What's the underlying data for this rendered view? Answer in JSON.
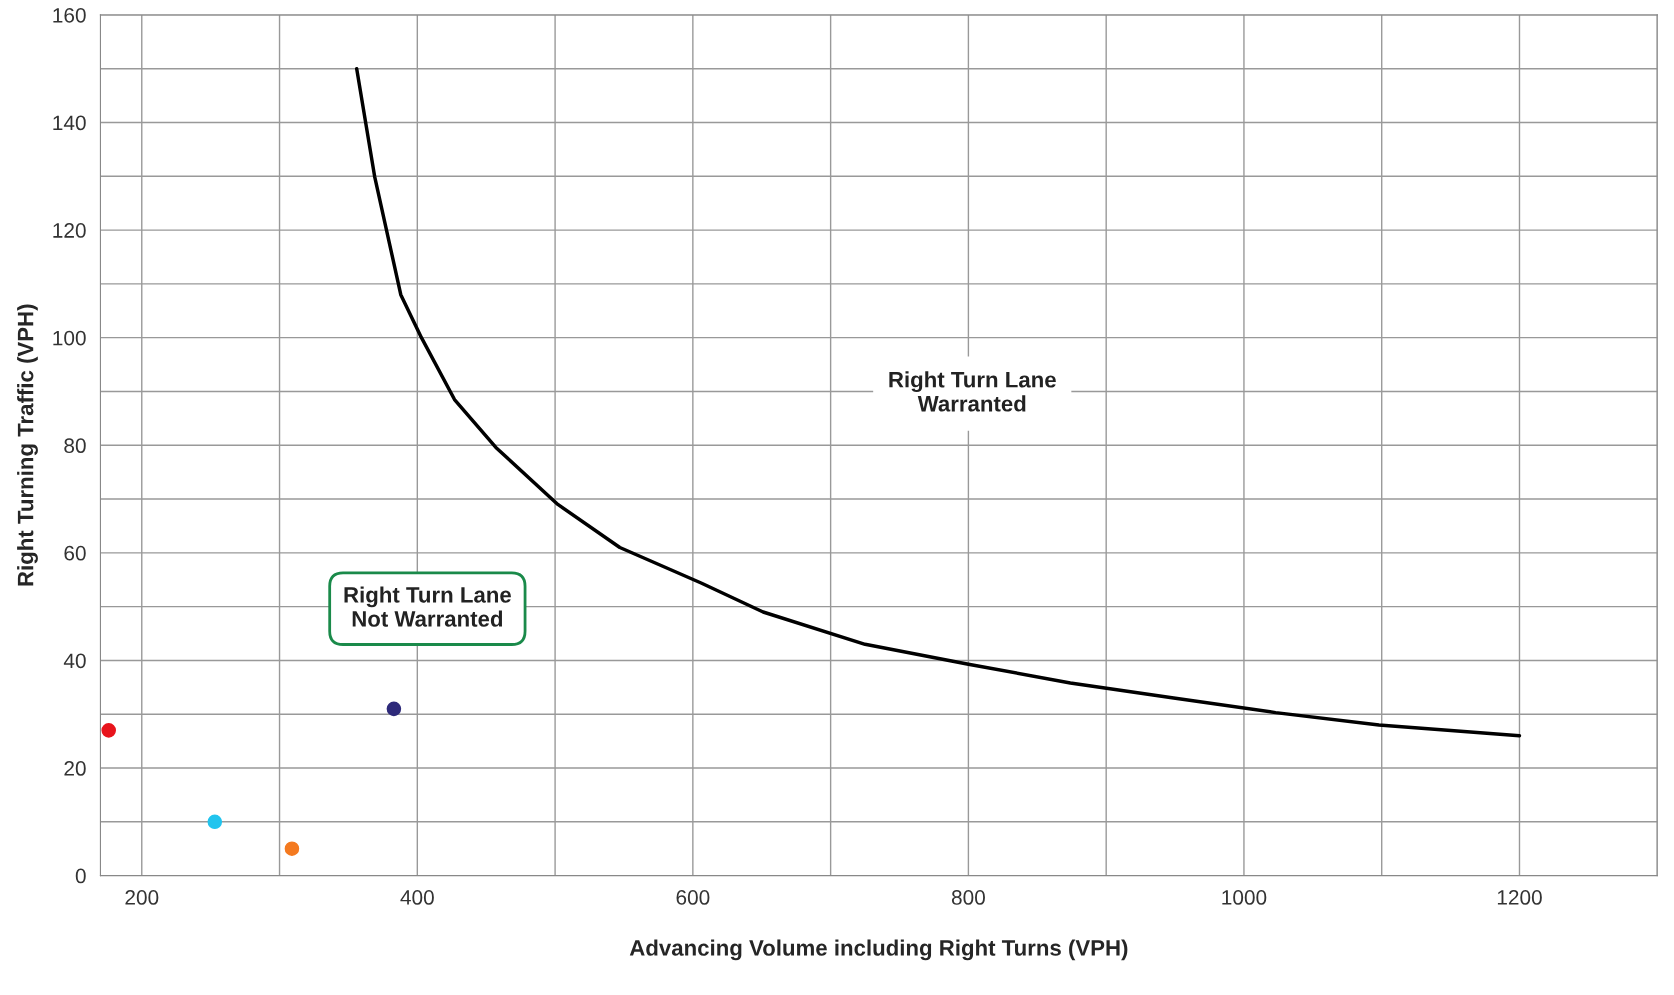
{
  "chart_data": {
    "type": "line",
    "xlabel": "Advancing Volume including Right Turns (VPH)",
    "ylabel": "Right Turning Traffic (VPH)",
    "xlim": [
      170,
      1300
    ],
    "ylim": [
      0,
      160
    ],
    "xticks": [
      200,
      {
        "value": 300,
        "label": null
      },
      400,
      {
        "value": 500,
        "label": null
      },
      600,
      {
        "value": 700,
        "label": null
      },
      800,
      {
        "value": 900,
        "label": null
      },
      1000,
      {
        "value": 1100,
        "label": null
      },
      1200,
      {
        "value": 1300,
        "label": null
      }
    ],
    "yticks": [
      0,
      {
        "value": 10,
        "label": null
      },
      20,
      {
        "value": 30,
        "label": null
      },
      40,
      {
        "value": 50,
        "label": null
      },
      60,
      {
        "value": 70,
        "label": null
      },
      80,
      {
        "value": 90,
        "label": null
      },
      100,
      {
        "value": 110,
        "label": null
      },
      120,
      {
        "value": 130,
        "label": null
      },
      140,
      {
        "value": 150,
        "label": null
      },
      160
    ],
    "grid": true,
    "series": [
      {
        "color": "#000000",
        "marker": "none",
        "x": [
          356,
          369,
          388,
          403,
          427,
          457,
          502,
          547,
          606,
          651,
          725,
          800,
          874,
          949,
          1023,
          1098,
          1200
        ],
        "values": [
          150,
          130,
          108,
          100,
          88.5,
          79.6,
          69,
          61,
          54.4,
          49,
          43,
          39.3,
          35.8,
          33,
          30.3,
          28,
          26
        ]
      },
      {
        "type": "scatter",
        "color": "#e8141c",
        "marker": "circle",
        "x": [
          176
        ],
        "values": [
          27
        ]
      },
      {
        "type": "scatter",
        "color": "#22c4ee",
        "marker": "circle",
        "x": [
          253
        ],
        "values": [
          10
        ]
      },
      {
        "type": "scatter",
        "color": "#f47a20",
        "marker": "circle",
        "x": [
          309
        ],
        "values": [
          5
        ]
      },
      {
        "type": "scatter",
        "color": "#2e2a7a",
        "marker": "circle",
        "x": [
          383
        ],
        "values": [
          31
        ]
      }
    ],
    "annotations": [
      "Right Turn Lane\nWarranted",
      "Right Turn Lane\nNot Warranted"
    ]
  }
}
